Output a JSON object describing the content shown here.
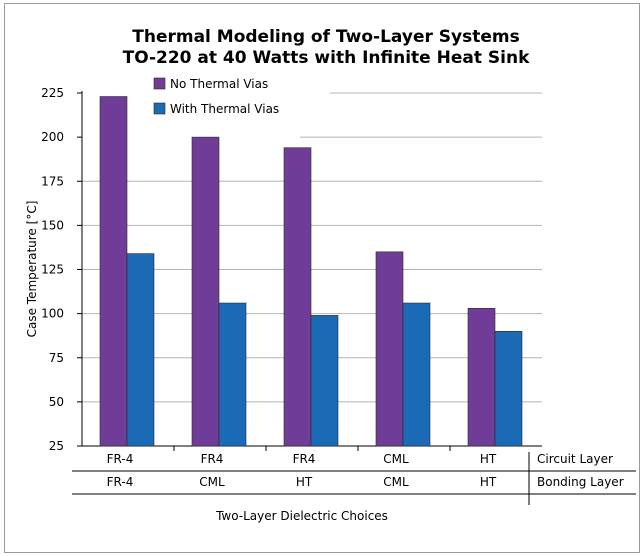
{
  "chart_data": {
    "type": "bar",
    "title_lines": [
      "Thermal Modeling of  Two-Layer Systems",
      "TO-220 at 40 Watts with Infinite Heat Sink"
    ],
    "ylabel": "Case Temperature [°C]",
    "xlabel": "Two-Layer Dielectric Choices",
    "ylim": [
      25,
      225
    ],
    "yticks": [
      25,
      50,
      75,
      100,
      125,
      150,
      175,
      200,
      225
    ],
    "grid": true,
    "legend_position": "top-left",
    "category_rows": [
      {
        "label": "Circuit Layer",
        "values": [
          "FR-4",
          "FR4",
          "FR4",
          "CML",
          "HT"
        ]
      },
      {
        "label": "Bonding Layer",
        "values": [
          "FR-4",
          "CML",
          "HT",
          "CML",
          "HT"
        ]
      }
    ],
    "series": [
      {
        "name": "No Thermal Vias",
        "color": "#6f3d98",
        "values": [
          223,
          200,
          194,
          135,
          103
        ]
      },
      {
        "name": "With Thermal Vias",
        "color": "#1a6ab5",
        "values": [
          134,
          106,
          99,
          106,
          90
        ]
      }
    ]
  }
}
